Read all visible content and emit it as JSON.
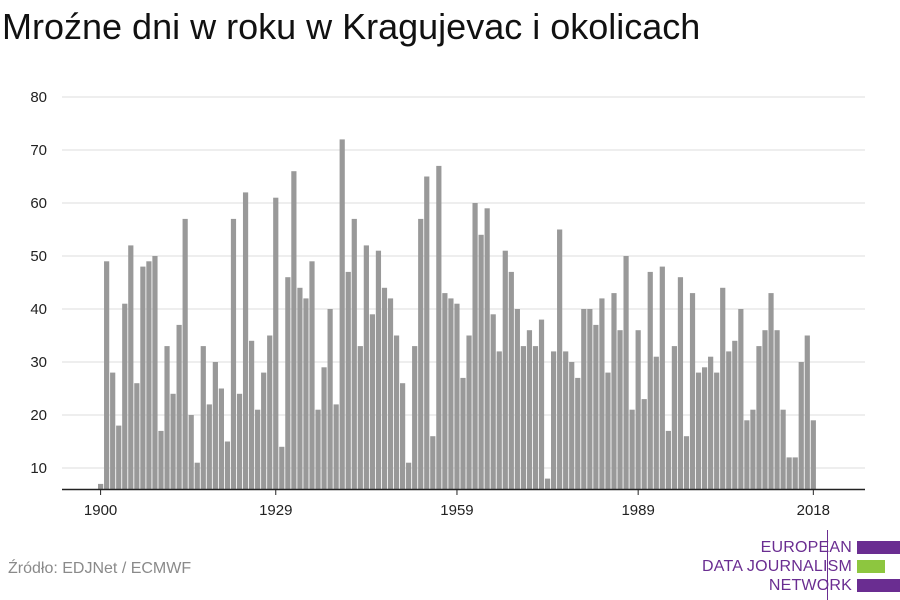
{
  "title": "Mroźne dni w roku w Kragujevac i okolicach",
  "source": "Źródło: EDJNet / ECMWF",
  "logo": {
    "lines": [
      "EUROPEAN",
      "DATA JOURNALISM",
      "NETWORK"
    ],
    "colors": {
      "purple": "#6a2d91",
      "green": "#8dc63f"
    }
  },
  "chart_data": {
    "type": "bar",
    "title": "Mroźne dni w roku w Kragujevac i okolicach",
    "xlabel": "",
    "ylabel": "",
    "x_tick_labels": [
      "1900",
      "1929",
      "1959",
      "1989",
      "2018"
    ],
    "y_ticks": [
      10,
      20,
      30,
      40,
      50,
      60,
      70,
      80
    ],
    "ylim": [
      6,
      80
    ],
    "bar_color": "#999999",
    "grid": true,
    "x": [
      1900,
      1901,
      1902,
      1903,
      1904,
      1905,
      1906,
      1907,
      1908,
      1909,
      1910,
      1911,
      1912,
      1913,
      1914,
      1915,
      1916,
      1917,
      1918,
      1919,
      1920,
      1921,
      1922,
      1923,
      1924,
      1925,
      1926,
      1927,
      1928,
      1929,
      1930,
      1931,
      1932,
      1933,
      1934,
      1935,
      1936,
      1937,
      1938,
      1939,
      1940,
      1941,
      1942,
      1943,
      1944,
      1945,
      1946,
      1947,
      1948,
      1949,
      1950,
      1951,
      1952,
      1953,
      1954,
      1955,
      1956,
      1957,
      1958,
      1959,
      1960,
      1961,
      1962,
      1963,
      1964,
      1965,
      1966,
      1967,
      1968,
      1969,
      1970,
      1971,
      1972,
      1973,
      1974,
      1975,
      1976,
      1977,
      1978,
      1979,
      1980,
      1981,
      1982,
      1983,
      1984,
      1985,
      1986,
      1987,
      1988,
      1989,
      1990,
      1991,
      1992,
      1993,
      1994,
      1995,
      1996,
      1997,
      1998,
      1999,
      2000,
      2001,
      2002,
      2003,
      2004,
      2005,
      2006,
      2007,
      2008,
      2009,
      2010,
      2011,
      2012,
      2013,
      2014,
      2015,
      2016,
      2017,
      2018
    ],
    "values": [
      7,
      49,
      28,
      18,
      41,
      52,
      26,
      48,
      49,
      50,
      17,
      33,
      24,
      37,
      57,
      20,
      11,
      33,
      22,
      30,
      25,
      15,
      57,
      24,
      62,
      34,
      21,
      28,
      35,
      61,
      14,
      46,
      66,
      44,
      42,
      49,
      21,
      29,
      40,
      22,
      72,
      47,
      57,
      33,
      52,
      39,
      51,
      44,
      42,
      35,
      26,
      11,
      33,
      57,
      65,
      16,
      67,
      43,
      42,
      41,
      27,
      35,
      60,
      54,
      59,
      39,
      32,
      51,
      47,
      40,
      33,
      36,
      33,
      38,
      8,
      32,
      55,
      32,
      30,
      27,
      40,
      40,
      37,
      42,
      28,
      43,
      36,
      50,
      21,
      36,
      23,
      47,
      31,
      48,
      17,
      33,
      46,
      16,
      43,
      28,
      29,
      31,
      28,
      44,
      32,
      34,
      40,
      19,
      21,
      33,
      36,
      43,
      36,
      21,
      12,
      12,
      30,
      35,
      19
    ]
  }
}
